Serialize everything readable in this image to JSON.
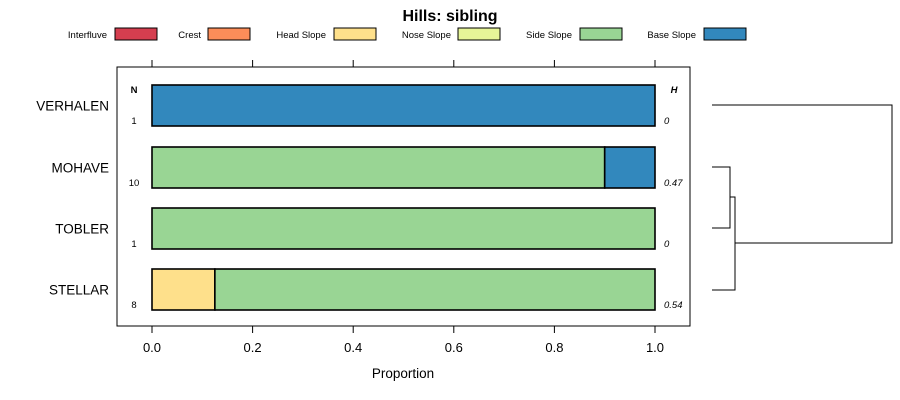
{
  "chart_data": {
    "type": "bar",
    "orientation": "horizontal",
    "stacked": true,
    "title": "Hills: sibling",
    "xlabel": "Proportion",
    "xlim": [
      -0.07,
      1.07
    ],
    "xticks": [
      0,
      0.2,
      0.4,
      0.6,
      0.8,
      1
    ],
    "xtick_labels": [
      "0.0",
      "0.2",
      "0.4",
      "0.6",
      "0.8",
      "1.0"
    ],
    "legend_position": "top",
    "legend": [
      {
        "label": "Interfluve",
        "color": "#d53e4f"
      },
      {
        "label": "Crest",
        "color": "#fc8d59"
      },
      {
        "label": "Head Slope",
        "color": "#fee08b"
      },
      {
        "label": "Nose Slope",
        "color": "#e6f598"
      },
      {
        "label": "Side Slope",
        "color": "#99d594"
      },
      {
        "label": "Base Slope",
        "color": "#3288bd"
      }
    ],
    "n_header": "N",
    "h_header": "H",
    "categories": [
      "VERHALEN",
      "MOHAVE",
      "TOBLER",
      "STELLAR"
    ],
    "n": [
      "1",
      "10",
      "1",
      "8"
    ],
    "h": [
      "0",
      "0.47",
      "0",
      "0.54"
    ],
    "series": [
      {
        "name": "Interfluve",
        "values": [
          0,
          0,
          0,
          0
        ]
      },
      {
        "name": "Crest",
        "values": [
          0,
          0,
          0,
          0
        ]
      },
      {
        "name": "Head Slope",
        "values": [
          0,
          0,
          0,
          0.125
        ]
      },
      {
        "name": "Nose Slope",
        "values": [
          0,
          0,
          0,
          0
        ]
      },
      {
        "name": "Side Slope",
        "values": [
          0,
          0.9,
          1,
          0.875
        ]
      },
      {
        "name": "Base Slope",
        "values": [
          1,
          0.1,
          0,
          0
        ]
      }
    ],
    "dendrogram": "hierarchical clustering of rows: (MOHAVE, TOBLER) joined with STELLAR, then with VERHALEN"
  }
}
